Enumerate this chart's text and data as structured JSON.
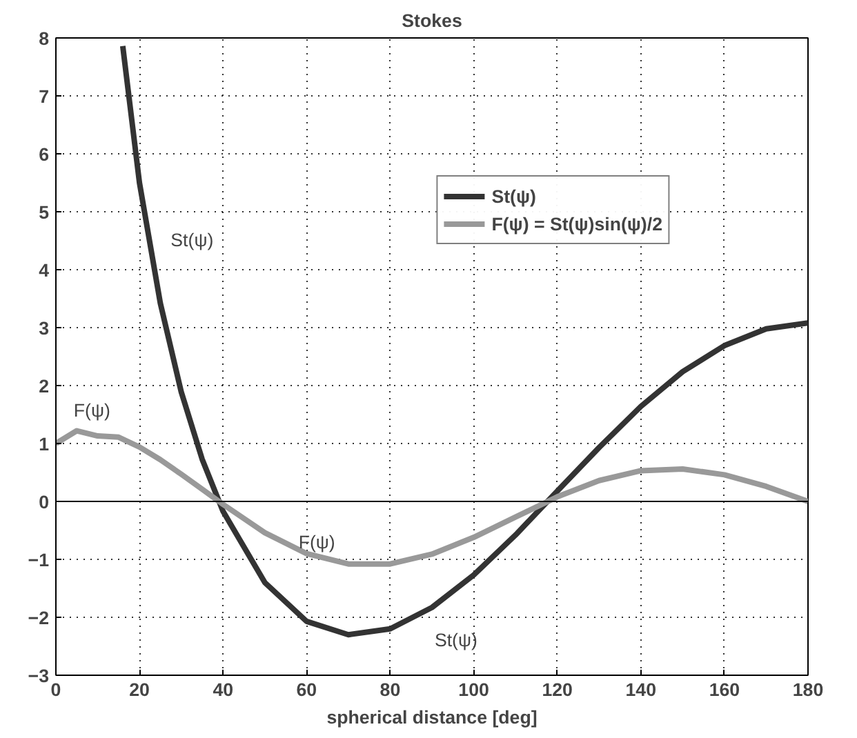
{
  "chart_data": {
    "type": "line",
    "title": "Stokes",
    "xlabel": "spherical distance [deg]",
    "xlim": [
      0,
      180
    ],
    "ylim": [
      -3,
      8
    ],
    "xticks": [
      0,
      20,
      40,
      60,
      80,
      100,
      120,
      140,
      160,
      180
    ],
    "yticks": [
      -3,
      -2,
      -1,
      0,
      1,
      2,
      3,
      4,
      5,
      6,
      7,
      8
    ],
    "grid": true,
    "legend": "top right",
    "line_style": "solid",
    "series": [
      {
        "name": "St(ψ)",
        "color": "#333333",
        "x": [
          16,
          20,
          25,
          30,
          35,
          40,
          50,
          60,
          70,
          80,
          90,
          100,
          110,
          120,
          130,
          140,
          150,
          160,
          170,
          180
        ],
        "values": [
          7.86,
          5.5,
          3.42,
          1.89,
          0.73,
          -0.17,
          -1.4,
          -2.07,
          -2.3,
          -2.2,
          -1.83,
          -1.27,
          -0.58,
          0.18,
          0.93,
          1.64,
          2.24,
          2.69,
          2.98,
          3.08
        ]
      },
      {
        "name": "F(ψ) = St(ψ)sin(ψ)/2",
        "color": "#999999",
        "x": [
          0,
          5,
          10,
          15,
          20,
          25,
          30,
          35,
          40,
          50,
          60,
          70,
          80,
          90,
          100,
          110,
          120,
          130,
          140,
          150,
          160,
          170,
          180
        ],
        "values": [
          1.0,
          1.22,
          1.13,
          1.11,
          0.94,
          0.72,
          0.47,
          0.21,
          -0.05,
          -0.54,
          -0.9,
          -1.08,
          -1.08,
          -0.91,
          -0.62,
          -0.27,
          0.08,
          0.36,
          0.53,
          0.56,
          0.46,
          0.26,
          0.0
        ]
      }
    ],
    "ref_lines": [
      {
        "axis": "y",
        "value": 0,
        "color": "#000000"
      }
    ],
    "annotations": [
      "St(ψ)",
      "F(ψ)",
      "F(ψ)",
      "St(ψ)"
    ]
  }
}
